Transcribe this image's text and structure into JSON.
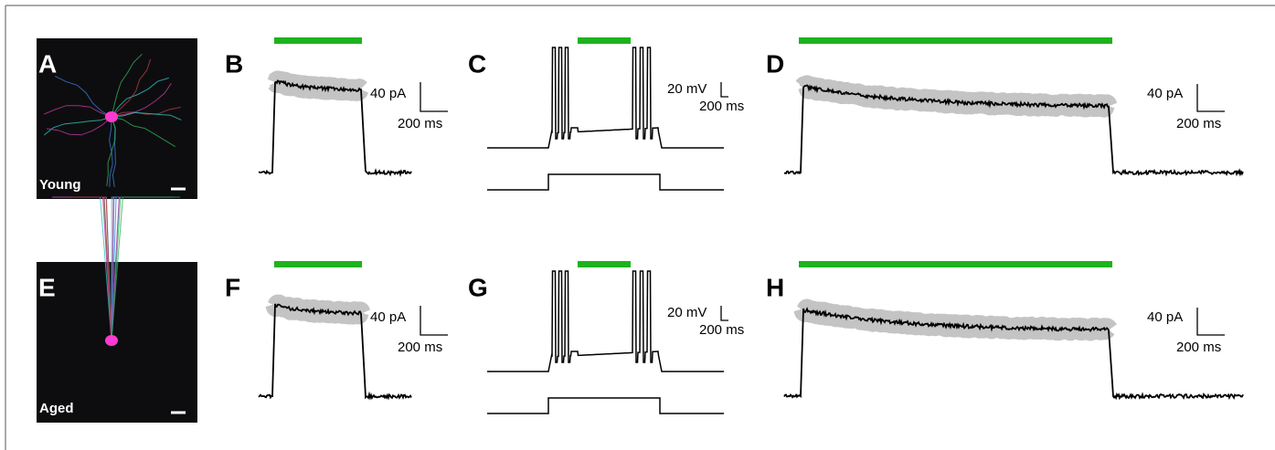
{
  "rows": [
    {
      "image": {
        "label": "A",
        "caption": "Young"
      },
      "short_current": {
        "label": "B",
        "scale_y": "40 pA",
        "scale_x": "200 ms"
      },
      "firing": {
        "label": "C",
        "scale_y": "20 mV",
        "scale_x": "200 ms"
      },
      "long_current": {
        "label": "D",
        "scale_y": "40 pA",
        "scale_x": "200 ms"
      }
    },
    {
      "image": {
        "label": "E",
        "caption": "Aged"
      },
      "short_current": {
        "label": "F",
        "scale_y": "40 pA",
        "scale_x": "200 ms"
      },
      "firing": {
        "label": "G",
        "scale_y": "20 mV",
        "scale_x": "200 ms"
      },
      "long_current": {
        "label": "H",
        "scale_y": "40 pA",
        "scale_x": "200 ms"
      }
    }
  ]
}
